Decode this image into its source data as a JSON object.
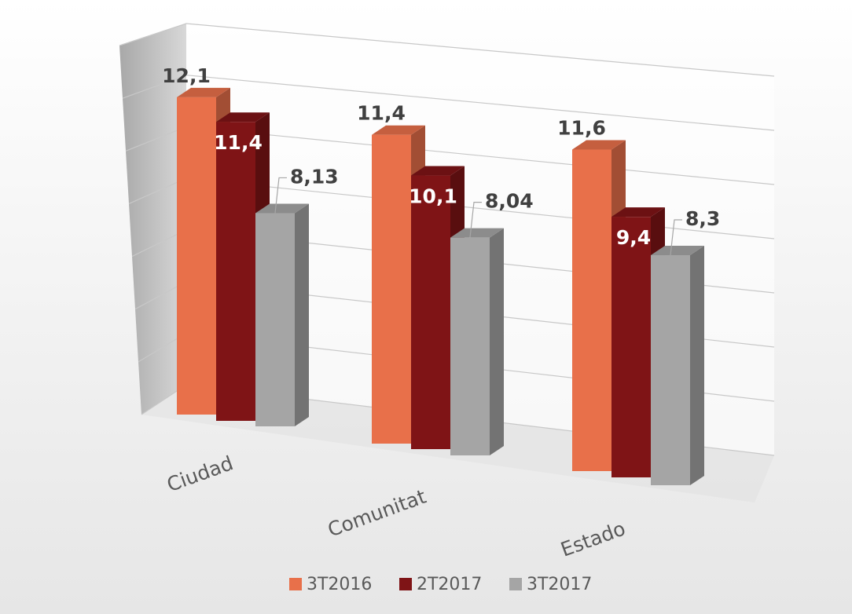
{
  "chart_data": {
    "type": "bar3d",
    "categories": [
      "Ciudad",
      "Comunitat",
      "Estado"
    ],
    "series": [
      {
        "name": "3T2016",
        "color": "#E8704A",
        "values": [
          12.1,
          11.4,
          11.6
        ],
        "value_labels": [
          "12,1",
          "11,4",
          "11,6"
        ]
      },
      {
        "name": "2T2017",
        "color": "#7F1416",
        "values": [
          11.4,
          10.1,
          9.4
        ],
        "value_labels": [
          "11,4",
          "10,1",
          "9,4"
        ]
      },
      {
        "name": "3T2017",
        "color": "#A5A5A5",
        "values": [
          8.13,
          8.04,
          8.3
        ],
        "value_labels": [
          "8,13",
          "8,04",
          "8,3"
        ]
      }
    ],
    "ylim": [
      0,
      14
    ],
    "grid": true,
    "legend": "bottom"
  }
}
